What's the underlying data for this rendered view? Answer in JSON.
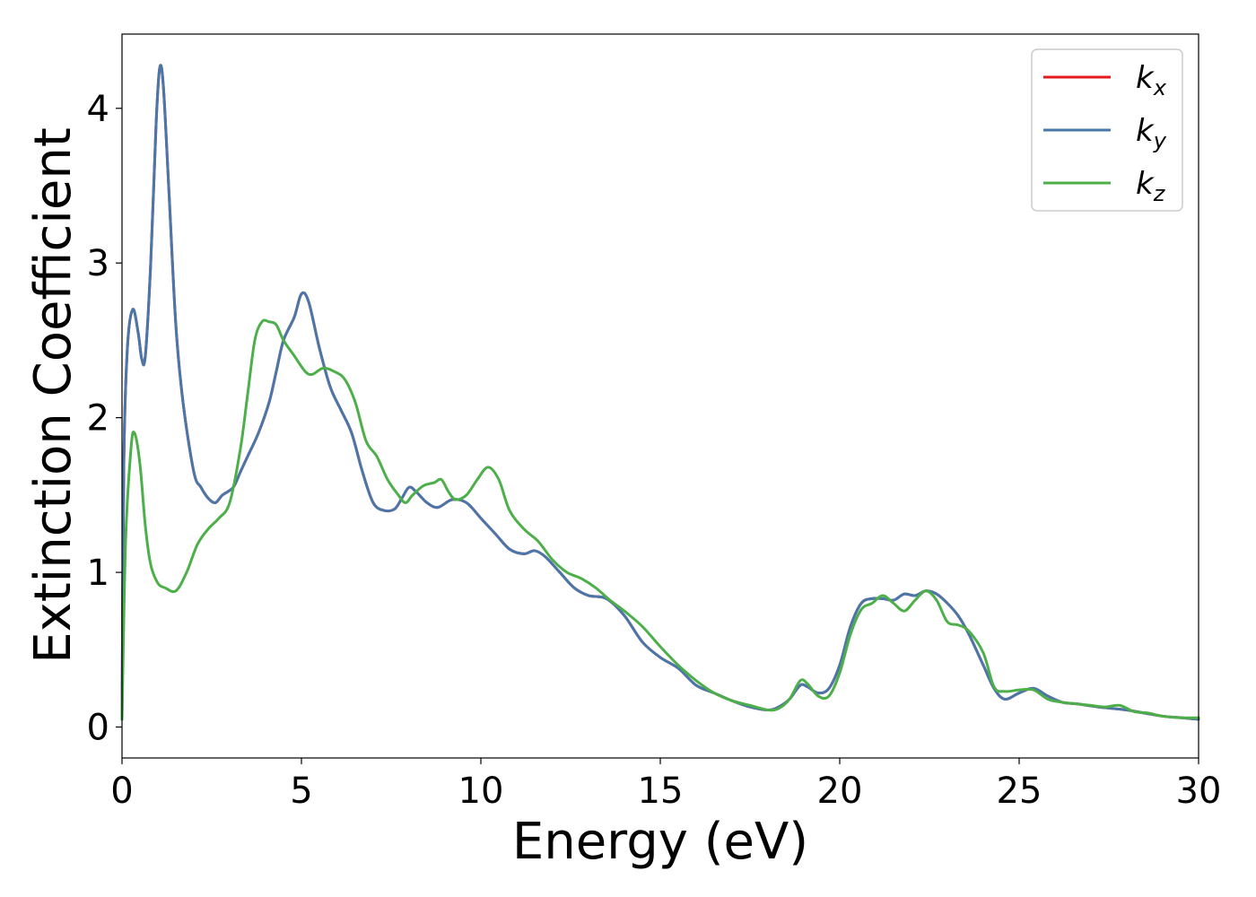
{
  "chart_data": {
    "type": "line",
    "xlabel": "Energy (eV)",
    "ylabel": "Extinction Coefficient",
    "xlim": [
      0,
      30
    ],
    "ylim": [
      -0.2,
      4.48
    ],
    "xticks": [
      0,
      5,
      10,
      15,
      20,
      25,
      30
    ],
    "yticks": [
      0,
      1,
      2,
      3,
      4
    ],
    "grid": false,
    "legend_position": "top-right",
    "series": [
      {
        "name": "k",
        "subscript": "x",
        "color": "#e41a1c",
        "x": [
          0,
          0.05,
          0.15,
          0.3,
          0.45,
          0.55,
          0.65,
          0.8,
          0.95,
          1.05,
          1.15,
          1.3,
          1.5,
          1.7,
          2.0,
          2.2,
          2.4,
          2.6,
          2.8,
          3.1,
          3.3,
          3.5,
          3.8,
          4.1,
          4.3,
          4.5,
          4.8,
          5.0,
          5.2,
          5.5,
          5.8,
          6.1,
          6.4,
          6.7,
          7.0,
          7.3,
          7.6,
          7.8,
          8.0,
          8.2,
          8.5,
          8.8,
          9.2,
          9.6,
          10.0,
          10.4,
          10.8,
          11.2,
          11.5,
          11.8,
          12.2,
          12.6,
          13.0,
          13.5,
          14.0,
          14.5,
          15.0,
          15.5,
          16.0,
          16.5,
          17.0,
          17.5,
          18.0,
          18.3,
          18.6,
          18.9,
          19.1,
          19.4,
          19.7,
          20.0,
          20.3,
          20.6,
          20.9,
          21.2,
          21.5,
          21.8,
          22.1,
          22.4,
          22.7,
          23.0,
          23.3,
          23.6,
          24.0,
          24.3,
          24.6,
          25.0,
          25.4,
          25.8,
          26.2,
          26.6,
          26.9,
          27.2,
          27.6,
          28.0,
          28.5,
          29.0,
          29.5,
          30.0
        ],
        "y": [
          0.05,
          1.7,
          2.45,
          2.7,
          2.55,
          2.38,
          2.4,
          3.0,
          3.9,
          4.26,
          4.15,
          3.5,
          2.6,
          2.1,
          1.65,
          1.55,
          1.48,
          1.45,
          1.5,
          1.55,
          1.65,
          1.75,
          1.9,
          2.1,
          2.3,
          2.5,
          2.65,
          2.8,
          2.75,
          2.45,
          2.2,
          2.05,
          1.9,
          1.65,
          1.45,
          1.4,
          1.41,
          1.48,
          1.55,
          1.52,
          1.45,
          1.42,
          1.47,
          1.45,
          1.35,
          1.25,
          1.15,
          1.12,
          1.14,
          1.1,
          1.0,
          0.9,
          0.85,
          0.83,
          0.72,
          0.55,
          0.45,
          0.38,
          0.27,
          0.22,
          0.17,
          0.13,
          0.11,
          0.13,
          0.18,
          0.27,
          0.26,
          0.22,
          0.25,
          0.4,
          0.65,
          0.8,
          0.83,
          0.83,
          0.82,
          0.86,
          0.85,
          0.88,
          0.86,
          0.8,
          0.72,
          0.6,
          0.4,
          0.25,
          0.18,
          0.22,
          0.25,
          0.2,
          0.16,
          0.15,
          0.14,
          0.13,
          0.12,
          0.11,
          0.09,
          0.07,
          0.06,
          0.05
        ]
      },
      {
        "name": "k",
        "subscript": "y",
        "color": "#4a77aa",
        "x": [
          0,
          0.05,
          0.15,
          0.3,
          0.45,
          0.55,
          0.65,
          0.8,
          0.95,
          1.05,
          1.15,
          1.3,
          1.5,
          1.7,
          2.0,
          2.2,
          2.4,
          2.6,
          2.8,
          3.1,
          3.3,
          3.5,
          3.8,
          4.1,
          4.3,
          4.5,
          4.8,
          5.0,
          5.2,
          5.5,
          5.8,
          6.1,
          6.4,
          6.7,
          7.0,
          7.3,
          7.6,
          7.8,
          8.0,
          8.2,
          8.5,
          8.8,
          9.2,
          9.6,
          10.0,
          10.4,
          10.8,
          11.2,
          11.5,
          11.8,
          12.2,
          12.6,
          13.0,
          13.5,
          14.0,
          14.5,
          15.0,
          15.5,
          16.0,
          16.5,
          17.0,
          17.5,
          18.0,
          18.3,
          18.6,
          18.9,
          19.1,
          19.4,
          19.7,
          20.0,
          20.3,
          20.6,
          20.9,
          21.2,
          21.5,
          21.8,
          22.1,
          22.4,
          22.7,
          23.0,
          23.3,
          23.6,
          24.0,
          24.3,
          24.6,
          25.0,
          25.4,
          25.8,
          26.2,
          26.6,
          26.9,
          27.2,
          27.6,
          28.0,
          28.5,
          29.0,
          29.5,
          30.0
        ],
        "y": [
          0.05,
          1.7,
          2.45,
          2.7,
          2.55,
          2.38,
          2.4,
          3.0,
          3.9,
          4.26,
          4.15,
          3.5,
          2.6,
          2.1,
          1.65,
          1.55,
          1.48,
          1.45,
          1.5,
          1.55,
          1.65,
          1.75,
          1.9,
          2.1,
          2.3,
          2.5,
          2.65,
          2.8,
          2.75,
          2.45,
          2.2,
          2.05,
          1.9,
          1.65,
          1.45,
          1.4,
          1.41,
          1.48,
          1.55,
          1.52,
          1.45,
          1.42,
          1.47,
          1.45,
          1.35,
          1.25,
          1.15,
          1.12,
          1.14,
          1.1,
          1.0,
          0.9,
          0.85,
          0.83,
          0.72,
          0.55,
          0.45,
          0.38,
          0.27,
          0.22,
          0.17,
          0.13,
          0.11,
          0.13,
          0.18,
          0.27,
          0.26,
          0.22,
          0.25,
          0.4,
          0.65,
          0.8,
          0.83,
          0.83,
          0.82,
          0.86,
          0.85,
          0.88,
          0.86,
          0.8,
          0.72,
          0.6,
          0.4,
          0.25,
          0.18,
          0.22,
          0.25,
          0.2,
          0.16,
          0.15,
          0.14,
          0.13,
          0.12,
          0.11,
          0.09,
          0.07,
          0.06,
          0.05
        ]
      },
      {
        "name": "k",
        "subscript": "z",
        "color": "#4daf4a",
        "x": [
          0,
          0.1,
          0.25,
          0.35,
          0.5,
          0.65,
          0.8,
          1.0,
          1.2,
          1.5,
          1.8,
          2.1,
          2.4,
          2.7,
          3.0,
          3.3,
          3.5,
          3.7,
          3.9,
          4.1,
          4.3,
          4.5,
          4.8,
          5.1,
          5.3,
          5.6,
          5.9,
          6.2,
          6.5,
          6.8,
          7.1,
          7.4,
          7.7,
          7.9,
          8.1,
          8.4,
          8.7,
          8.9,
          9.1,
          9.3,
          9.6,
          9.9,
          10.2,
          10.5,
          10.8,
          11.2,
          11.6,
          12.0,
          12.4,
          12.8,
          13.2,
          13.6,
          14.0,
          14.5,
          15.0,
          15.5,
          16.0,
          16.5,
          17.0,
          17.5,
          18.0,
          18.3,
          18.6,
          18.9,
          19.1,
          19.4,
          19.7,
          20.0,
          20.3,
          20.6,
          20.9,
          21.2,
          21.5,
          21.8,
          22.1,
          22.4,
          22.7,
          23.0,
          23.3,
          23.6,
          24.0,
          24.3,
          24.6,
          25.0,
          25.4,
          25.8,
          26.2,
          26.6,
          27.0,
          27.4,
          27.8,
          28.2,
          28.6,
          29.0,
          29.5,
          30.0
        ],
        "y": [
          0.05,
          1.2,
          1.8,
          1.9,
          1.7,
          1.3,
          1.05,
          0.93,
          0.9,
          0.88,
          1.0,
          1.18,
          1.28,
          1.35,
          1.45,
          1.8,
          2.15,
          2.5,
          2.62,
          2.62,
          2.6,
          2.5,
          2.4,
          2.3,
          2.28,
          2.32,
          2.3,
          2.25,
          2.1,
          1.85,
          1.75,
          1.6,
          1.5,
          1.45,
          1.5,
          1.56,
          1.58,
          1.6,
          1.52,
          1.47,
          1.5,
          1.6,
          1.68,
          1.6,
          1.4,
          1.28,
          1.2,
          1.08,
          1.0,
          0.96,
          0.9,
          0.82,
          0.75,
          0.65,
          0.52,
          0.4,
          0.3,
          0.22,
          0.17,
          0.14,
          0.11,
          0.12,
          0.18,
          0.3,
          0.28,
          0.2,
          0.2,
          0.35,
          0.6,
          0.76,
          0.8,
          0.85,
          0.8,
          0.75,
          0.82,
          0.88,
          0.82,
          0.68,
          0.66,
          0.62,
          0.48,
          0.26,
          0.23,
          0.24,
          0.24,
          0.18,
          0.16,
          0.15,
          0.14,
          0.13,
          0.14,
          0.1,
          0.09,
          0.07,
          0.06,
          0.06
        ]
      }
    ]
  }
}
